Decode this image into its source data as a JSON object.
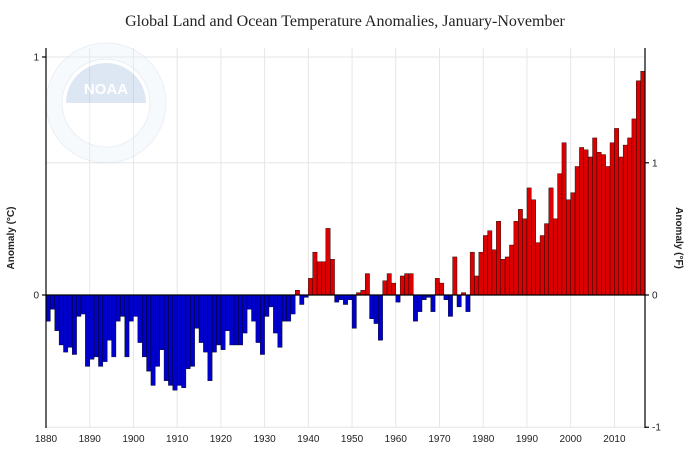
{
  "chart_data": {
    "type": "bar",
    "title": "Global Land and Ocean Temperature Anomalies, January-November",
    "ylabel_left": "Anomaly (°C)",
    "ylabel_right": "Anomaly (°F)",
    "xlim": [
      1880,
      2016
    ],
    "ylim_c": [
      -0.55,
      1.0
    ],
    "left_ticks": [
      {
        "value": 1,
        "label": "1"
      },
      {
        "value": 0,
        "label": "0"
      }
    ],
    "right_ticks": [
      {
        "value": 1,
        "label": "1"
      },
      {
        "value": 0,
        "label": "0"
      },
      {
        "value": -1,
        "label": "-1"
      }
    ],
    "x_ticks": [
      1880,
      1890,
      1900,
      1910,
      1920,
      1930,
      1940,
      1950,
      1960,
      1970,
      1980,
      1990,
      2000,
      2010
    ],
    "grid": true,
    "colors": {
      "positive": "#dd0000",
      "negative": "#0000cc",
      "grid": "#e6e6e6"
    },
    "logo": {
      "icon": "noaa-logo-watermark",
      "text": "NOAA"
    },
    "x": [
      1880,
      1881,
      1882,
      1883,
      1884,
      1885,
      1886,
      1887,
      1888,
      1889,
      1890,
      1891,
      1892,
      1893,
      1894,
      1895,
      1896,
      1897,
      1898,
      1899,
      1900,
      1901,
      1902,
      1903,
      1904,
      1905,
      1906,
      1907,
      1908,
      1909,
      1910,
      1911,
      1912,
      1913,
      1914,
      1915,
      1916,
      1917,
      1918,
      1919,
      1920,
      1921,
      1922,
      1923,
      1924,
      1925,
      1926,
      1927,
      1928,
      1929,
      1930,
      1931,
      1932,
      1933,
      1934,
      1935,
      1936,
      1937,
      1938,
      1939,
      1940,
      1941,
      1942,
      1943,
      1944,
      1945,
      1946,
      1947,
      1948,
      1949,
      1950,
      1951,
      1952,
      1953,
      1954,
      1955,
      1956,
      1957,
      1958,
      1959,
      1960,
      1961,
      1962,
      1963,
      1964,
      1965,
      1966,
      1967,
      1968,
      1969,
      1970,
      1971,
      1972,
      1973,
      1974,
      1975,
      1976,
      1977,
      1978,
      1979,
      1980,
      1981,
      1982,
      1983,
      1984,
      1985,
      1986,
      1987,
      1988,
      1989,
      1990,
      1991,
      1992,
      1993,
      1994,
      1995,
      1996,
      1997,
      1998,
      1999,
      2000,
      2001,
      2002,
      2003,
      2004,
      2005,
      2006,
      2007,
      2008,
      2009,
      2010,
      2011,
      2012,
      2013,
      2014,
      2015,
      2016
    ],
    "values": [
      -0.11,
      -0.06,
      -0.15,
      -0.21,
      -0.24,
      -0.22,
      -0.25,
      -0.09,
      -0.08,
      -0.3,
      -0.27,
      -0.26,
      -0.3,
      -0.28,
      -0.19,
      -0.26,
      -0.11,
      -0.09,
      -0.26,
      -0.11,
      -0.09,
      -0.2,
      -0.26,
      -0.32,
      -0.38,
      -0.3,
      -0.23,
      -0.36,
      -0.38,
      -0.4,
      -0.38,
      -0.39,
      -0.31,
      -0.3,
      -0.14,
      -0.2,
      -0.24,
      -0.36,
      -0.24,
      -0.21,
      -0.23,
      -0.15,
      -0.21,
      -0.21,
      -0.21,
      -0.16,
      -0.06,
      -0.11,
      -0.2,
      -0.25,
      -0.09,
      -0.05,
      -0.16,
      -0.22,
      -0.11,
      -0.11,
      -0.08,
      0.02,
      -0.04,
      -0.01,
      0.07,
      0.18,
      0.14,
      0.14,
      0.28,
      0.15,
      -0.03,
      -0.02,
      -0.04,
      -0.02,
      -0.14,
      0.01,
      0.02,
      0.09,
      -0.1,
      -0.12,
      -0.19,
      0.06,
      0.09,
      0.05,
      -0.03,
      0.08,
      0.09,
      0.09,
      -0.11,
      -0.07,
      -0.02,
      -0.01,
      -0.07,
      0.07,
      0.05,
      -0.02,
      -0.09,
      0.16,
      -0.05,
      0.01,
      -0.07,
      0.18,
      0.08,
      0.18,
      0.25,
      0.27,
      0.19,
      0.31,
      0.15,
      0.16,
      0.21,
      0.31,
      0.36,
      0.32,
      0.45,
      0.4,
      0.22,
      0.25,
      0.3,
      0.45,
      0.32,
      0.51,
      0.64,
      0.4,
      0.43,
      0.54,
      0.62,
      0.61,
      0.58,
      0.66,
      0.6,
      0.59,
      0.54,
      0.64,
      0.7,
      0.58,
      0.63,
      0.66,
      0.74,
      0.9,
      0.94
    ]
  }
}
